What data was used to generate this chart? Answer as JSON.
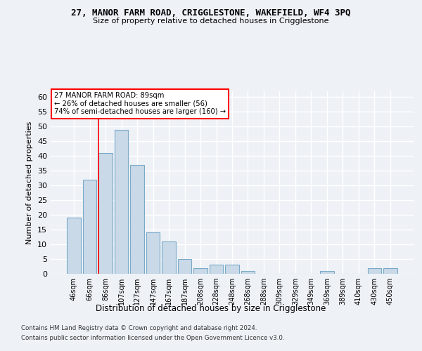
{
  "title": "27, MANOR FARM ROAD, CRIGGLESTONE, WAKEFIELD, WF4 3PQ",
  "subtitle": "Size of property relative to detached houses in Crigglestone",
  "xlabel": "Distribution of detached houses by size in Crigglestone",
  "ylabel": "Number of detached properties",
  "categories": [
    "46sqm",
    "66sqm",
    "86sqm",
    "107sqm",
    "127sqm",
    "147sqm",
    "167sqm",
    "187sqm",
    "208sqm",
    "228sqm",
    "248sqm",
    "268sqm",
    "288sqm",
    "309sqm",
    "329sqm",
    "349sqm",
    "369sqm",
    "389sqm",
    "410sqm",
    "430sqm",
    "450sqm"
  ],
  "values": [
    19,
    32,
    41,
    49,
    37,
    14,
    11,
    5,
    2,
    3,
    3,
    1,
    0,
    0,
    0,
    0,
    1,
    0,
    0,
    2,
    2
  ],
  "bar_color": "#c9d9e8",
  "bar_edge_color": "#7aaac8",
  "annotation_box_text": "27 MANOR FARM ROAD: 89sqm\n← 26% of detached houses are smaller (56)\n74% of semi-detached houses are larger (160) →",
  "ylim": [
    0,
    62
  ],
  "yticks": [
    0,
    5,
    10,
    15,
    20,
    25,
    30,
    35,
    40,
    45,
    50,
    55,
    60
  ],
  "background_color": "#eef2f7",
  "grid_color": "#ffffff",
  "footer_line1": "Contains HM Land Registry data © Crown copyright and database right 2024.",
  "footer_line2": "Contains public sector information licensed under the Open Government Licence v3.0."
}
